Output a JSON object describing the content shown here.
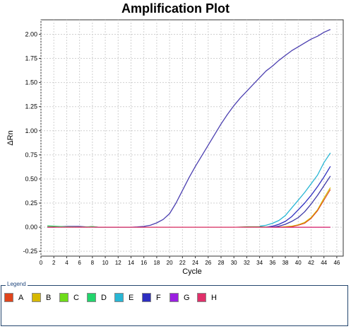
{
  "chart_data": {
    "type": "line",
    "title": "Amplification Plot",
    "xlabel": "Cycle",
    "ylabel": "ΔRn",
    "xlim": [
      0,
      47
    ],
    "ylim": [
      -0.3,
      2.15
    ],
    "x_ticks": [
      0,
      2,
      4,
      6,
      8,
      10,
      12,
      14,
      16,
      18,
      20,
      22,
      24,
      26,
      28,
      30,
      32,
      34,
      36,
      38,
      40,
      42,
      44,
      46
    ],
    "y_ticks": [
      -0.25,
      0.0,
      0.25,
      0.5,
      0.75,
      1.0,
      1.25,
      1.5,
      1.75,
      2.0
    ],
    "y_tick_labels": [
      "-0.25",
      "0.00",
      "0.25",
      "0.50",
      "0.75",
      "1.00",
      "1.25",
      "1.50",
      "1.75",
      "2.00"
    ],
    "x_tick_labels": [
      "0",
      "2",
      "4",
      "6",
      "8",
      "10",
      "12",
      "14",
      "16",
      "18",
      "20",
      "22",
      "24",
      "26",
      "28",
      "30",
      "32",
      "34",
      "36",
      "38",
      "40",
      "42",
      "44",
      "46"
    ],
    "grid": true,
    "series": [
      {
        "color": "#4b3fb0",
        "width": 1.3,
        "x": [
          1,
          2,
          3,
          4,
          5,
          6,
          7,
          8,
          9,
          10,
          11,
          12,
          13,
          14,
          15,
          16,
          17,
          18,
          19,
          20,
          21,
          22,
          23,
          24,
          25,
          26,
          27,
          28,
          29,
          30,
          31,
          32,
          33,
          34,
          35,
          36,
          37,
          38,
          39,
          40,
          41,
          42,
          43,
          44,
          45
        ],
        "y": [
          0.0,
          0.0,
          0.005,
          0.008,
          0.008,
          0.008,
          0.004,
          0.002,
          0.0,
          0.0,
          0.0,
          0.0,
          0.0,
          0.0,
          0.003,
          0.008,
          0.02,
          0.045,
          0.08,
          0.14,
          0.25,
          0.38,
          0.51,
          0.63,
          0.74,
          0.85,
          0.96,
          1.07,
          1.17,
          1.26,
          1.34,
          1.41,
          1.48,
          1.55,
          1.62,
          1.67,
          1.73,
          1.78,
          1.83,
          1.87,
          1.91,
          1.95,
          1.98,
          2.02,
          2.05
        ]
      },
      {
        "color": "#29b6d4",
        "width": 1.3,
        "x": [
          34,
          35,
          36,
          37,
          38,
          39,
          40,
          41,
          42,
          43,
          44,
          45
        ],
        "y": [
          0.01,
          0.02,
          0.04,
          0.07,
          0.12,
          0.2,
          0.28,
          0.36,
          0.45,
          0.54,
          0.67,
          0.77
        ]
      },
      {
        "color": "#2d2ec0",
        "width": 1.3,
        "x": [
          35,
          36,
          37,
          38,
          39,
          40,
          41,
          42,
          43,
          44,
          45
        ],
        "y": [
          0.0,
          0.01,
          0.03,
          0.06,
          0.11,
          0.18,
          0.25,
          0.33,
          0.42,
          0.52,
          0.63
        ]
      },
      {
        "color": "#3e3aa8",
        "width": 1.3,
        "x": [
          36,
          37,
          38,
          39,
          40,
          41,
          42,
          43,
          44,
          45
        ],
        "y": [
          0.0,
          0.01,
          0.03,
          0.06,
          0.1,
          0.16,
          0.24,
          0.33,
          0.43,
          0.53
        ]
      },
      {
        "color": "#d6b800",
        "width": 1.3,
        "x": [
          37,
          38,
          39,
          40,
          41,
          42,
          43,
          44,
          45
        ],
        "y": [
          0.0,
          0.005,
          0.01,
          0.025,
          0.05,
          0.1,
          0.18,
          0.3,
          0.41
        ]
      },
      {
        "color": "#e0441c",
        "width": 1.1,
        "x": [
          37,
          38,
          39,
          40,
          41,
          42,
          43,
          44,
          45
        ],
        "y": [
          0.0,
          0.0,
          0.005,
          0.02,
          0.04,
          0.09,
          0.17,
          0.28,
          0.39
        ]
      },
      {
        "color": "#5a8f3a",
        "width": 1.0,
        "x": [
          1,
          2,
          3,
          4,
          5,
          6,
          7,
          8,
          9,
          10,
          12,
          14,
          16,
          18,
          20,
          22,
          24,
          26,
          28,
          30,
          32,
          34,
          36
        ],
        "y": [
          0.01,
          0.008,
          0.005,
          0.005,
          0.003,
          0.002,
          0.004,
          0.008,
          0.0,
          0.0,
          0.0,
          0.0,
          0.0,
          0.0,
          0.0,
          0.0,
          0.0,
          0.0,
          0.0,
          0.0,
          0.005,
          0.005,
          0.0
        ]
      },
      {
        "color": "#2bd06a",
        "width": 1.0,
        "x": [
          1,
          2,
          3,
          4,
          5,
          6,
          7,
          8,
          9,
          10
        ],
        "y": [
          0.015,
          0.012,
          0.008,
          0.004,
          0.002,
          0.001,
          0.003,
          0.006,
          0.0,
          0.0
        ]
      },
      {
        "color": "#9a1fe0",
        "width": 1.2,
        "x": [
          36,
          38,
          40,
          42,
          44,
          45
        ],
        "y": [
          0.0,
          0.0,
          0.0,
          0.0,
          0.0,
          0.0
        ]
      },
      {
        "color": "#e0306a",
        "width": 1.2,
        "x": [
          1,
          4,
          8,
          12,
          16,
          20,
          24,
          28,
          32,
          36,
          40,
          44,
          45
        ],
        "y": [
          0.0,
          0.0,
          0.0,
          0.0,
          0.0,
          0.0,
          0.0,
          0.0,
          0.0,
          0.0,
          0.0,
          0.0,
          0.0
        ]
      }
    ]
  },
  "legend": {
    "title": "Legend",
    "items": [
      {
        "label": "A",
        "color": "#e0441c"
      },
      {
        "label": "B",
        "color": "#d6b800"
      },
      {
        "label": "C",
        "color": "#6edc1a"
      },
      {
        "label": "D",
        "color": "#22d46c"
      },
      {
        "label": "E",
        "color": "#29b6d4"
      },
      {
        "label": "F",
        "color": "#2d2ec0"
      },
      {
        "label": "G",
        "color": "#9a1fe0"
      },
      {
        "label": "H",
        "color": "#e0306a"
      }
    ]
  }
}
